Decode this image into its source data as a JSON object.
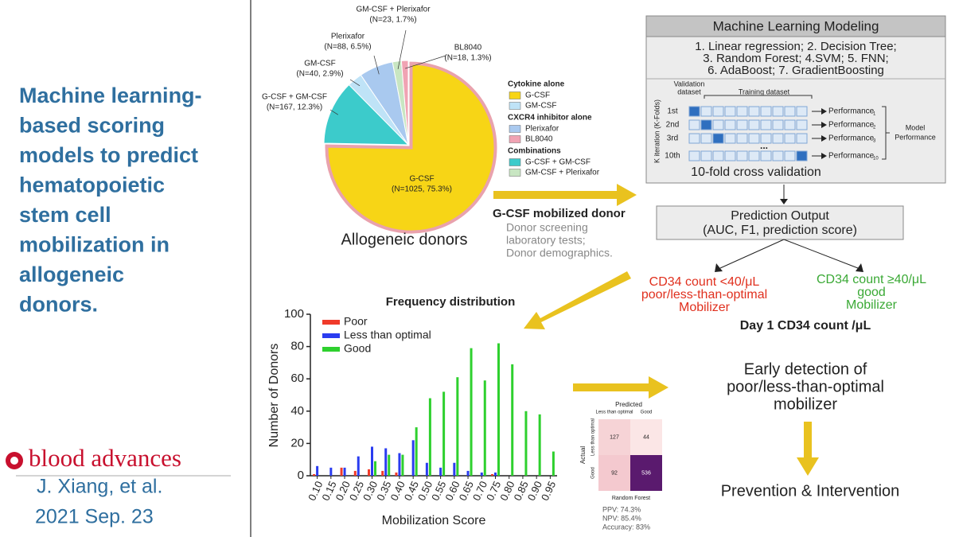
{
  "slide": {
    "title_lines": [
      "Machine learning-",
      "based scoring",
      "models to predict",
      "hematopoietic",
      "stem cell",
      "mobilization in",
      "allogeneic",
      "donors."
    ],
    "journal": "blood advances",
    "authors": "J. Xiang, et al.",
    "date": "2021 Sep. 23"
  },
  "chart_data": [
    {
      "type": "pie",
      "categories": [
        "G-CSF",
        "G-CSF + GM-CSF",
        "GM-CSF",
        "Plerixafor",
        "GM-CSF + Plerixafor",
        "BL8040"
      ],
      "values": [
        75.3,
        12.3,
        2.9,
        6.5,
        1.7,
        1.3
      ],
      "value_labels": [
        "(N=1025, 75.3%)",
        "(N=167, 12.3%)",
        "(N=40, 2.9%)",
        "(N=88, 6.5%)",
        "(N=23, 1.7%)",
        "(N=18, 1.3%)"
      ],
      "colors": [
        "#f7d516",
        "#3ccbcb",
        "#bfe3f7",
        "#a9c9ef",
        "#c8e6c2",
        "#f0a3b3"
      ],
      "caption": "Allogeneic donors",
      "legend_groups": [
        {
          "title": "Cytokine alone",
          "entries": [
            "G-CSF",
            "GM-CSF"
          ]
        },
        {
          "title": "CXCR4 inhibitor alone",
          "entries": [
            "Plerixafor",
            "BL8040"
          ]
        },
        {
          "title": "Combinations",
          "entries": [
            "G-CSF + GM-CSF",
            "GM-CSF + Plerixafor"
          ]
        }
      ]
    },
    {
      "type": "bar",
      "title": "Frequency distribution",
      "x_label": "Mobilization Score",
      "y_label": "Number of Donors",
      "categories": [
        "0.10",
        "0.15",
        "0.20",
        "0.25",
        "0.30",
        "0.35",
        "0.40",
        "0.45",
        "0.50",
        "0.55",
        "0.60",
        "0.65",
        "0.70",
        "0.75",
        "0.80",
        "0.85",
        "0.90",
        "0.95"
      ],
      "series": [
        {
          "name": "Poor",
          "color": "#f03a2a",
          "values": [
            1,
            0,
            5,
            3,
            4,
            3,
            2,
            0,
            0,
            0,
            0,
            0,
            0,
            1,
            0,
            0,
            0,
            0
          ]
        },
        {
          "name": "Less than optimal",
          "color": "#2a3cf0",
          "values": [
            6,
            5,
            5,
            12,
            18,
            17,
            14,
            22,
            8,
            5,
            8,
            3,
            2,
            2,
            0,
            0,
            0,
            0
          ]
        },
        {
          "name": "Good",
          "color": "#2ed02e",
          "values": [
            0,
            0,
            0,
            0,
            9,
            13,
            13,
            30,
            48,
            52,
            61,
            79,
            59,
            82,
            69,
            40,
            38,
            15
          ]
        }
      ],
      "ylim": [
        0,
        100
      ],
      "yticks": [
        0,
        20,
        40,
        60,
        80,
        100
      ],
      "legend": "top-left"
    }
  ],
  "donor_panel": {
    "mobilized": "G-CSF mobilized donor",
    "notes": [
      "Donor screening",
      "laboratory tests;",
      "Donor demographics."
    ]
  },
  "ml_box": {
    "title": "Machine Learning Modeling",
    "models": [
      "1. Linear regression; 2. Decision Tree;",
      "3. Random Forest; 4.SVM; 5. FNN;",
      "6. AdaBoost; 7. GradientBoosting"
    ],
    "validation_label": [
      "Validation",
      "dataset"
    ],
    "training_label": "Training dataset",
    "axis_label": "K iteration (K-Folds)",
    "rows": [
      {
        "label": "1st",
        "performance": "Performance",
        "index": "1"
      },
      {
        "label": "2nd",
        "performance": "Performance",
        "index": "2"
      },
      {
        "label": "3rd",
        "performance": "Performance",
        "index": "3"
      },
      {
        "label": "10th",
        "performance": "Performance",
        "index": "10"
      }
    ],
    "ellipsis": "...",
    "model_performance": [
      "Model",
      "Performance"
    ],
    "caption": "10-fold cross validation"
  },
  "prediction": {
    "title": "Prediction Output",
    "detail": "(AUC, F1, prediction score)"
  },
  "outcomes": {
    "poor": [
      "CD34 count <40/μL",
      "poor/less-than-optimal",
      "Mobilizer"
    ],
    "good": [
      "CD34 count ≥40/μL",
      "good",
      "Mobilizer"
    ],
    "day1": "Day 1 CD34 count /μL",
    "early": [
      "Early detection of",
      "poor/less-than-optimal",
      "mobilizer"
    ],
    "prevention": "Prevention & Intervention"
  },
  "confusion_matrix": {
    "predicted": "Predicted",
    "actual": "Actual",
    "columns": [
      "Less than optimal",
      "Good"
    ],
    "rows": [
      "Less than optimal",
      "Good"
    ],
    "cells": [
      [
        127,
        44
      ],
      [
        92,
        536
      ]
    ],
    "cell_colors": [
      [
        "#f6d3d6",
        "#fbe6e6"
      ],
      [
        "#f4c9cf",
        "#5a1a6e"
      ]
    ],
    "model": "Random Forest",
    "metrics": [
      "PPV: 74.3%",
      "NPV: 85.4%",
      "Accuracy: 83%"
    ]
  }
}
